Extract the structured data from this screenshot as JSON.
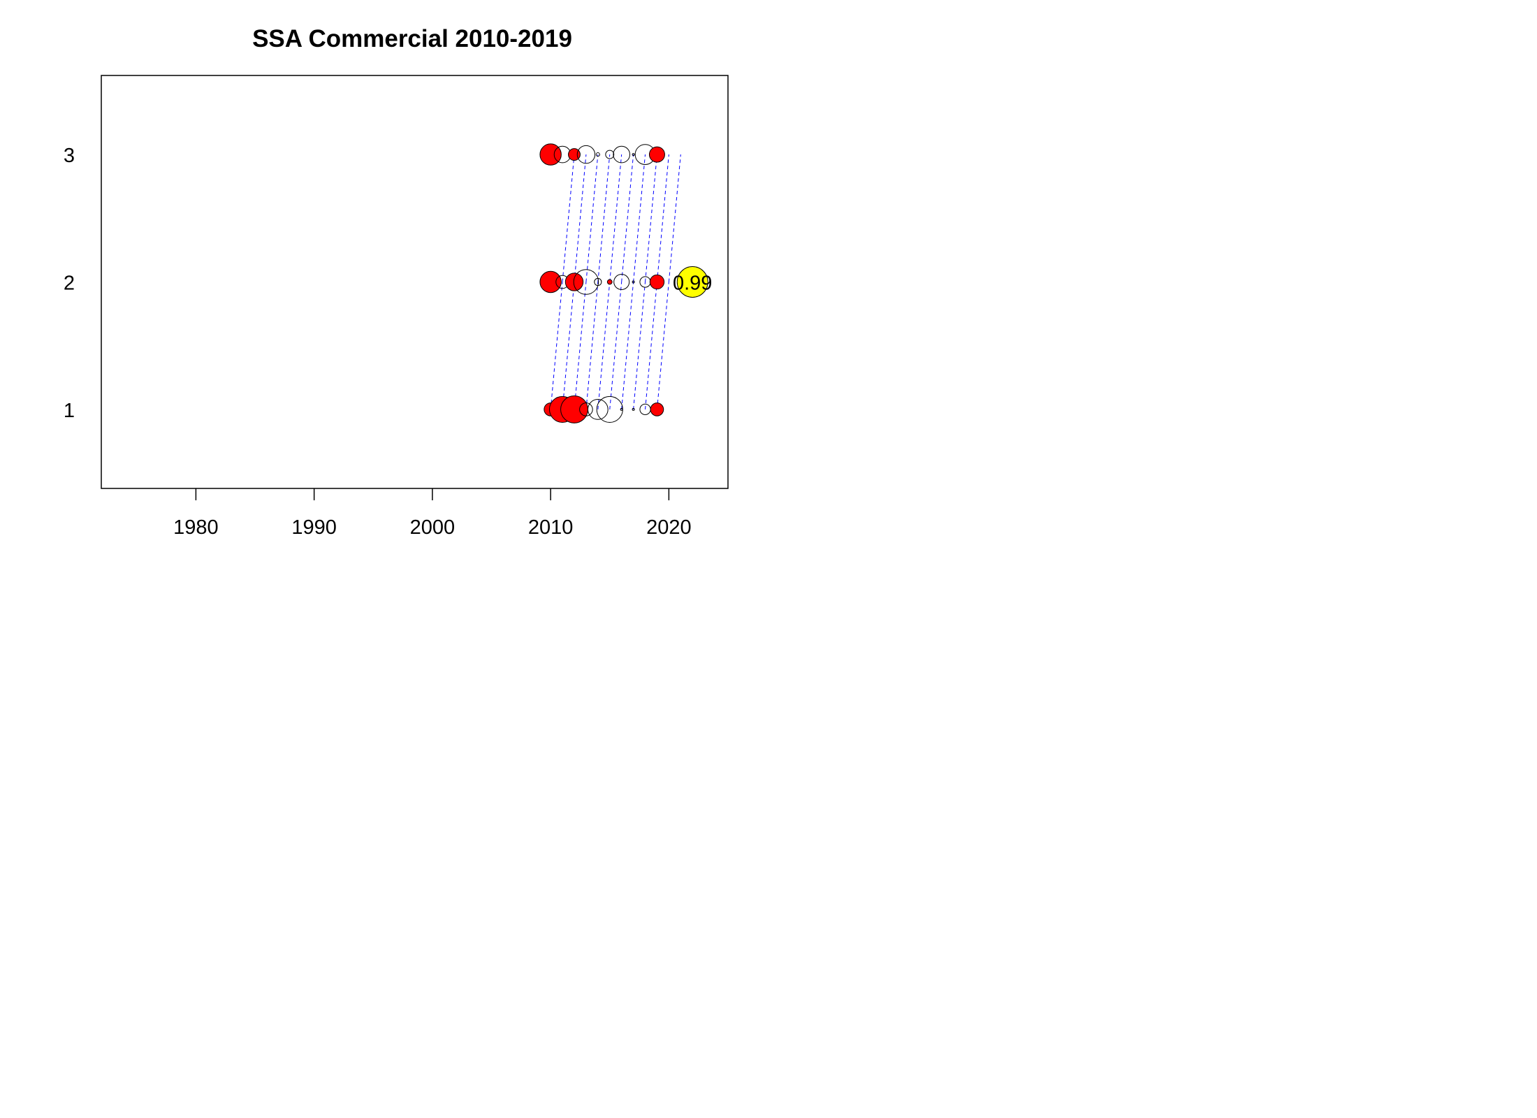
{
  "chart_data": {
    "type": "scatter",
    "title": "SSA Commercial 2010-2019",
    "xlabel": "",
    "ylabel": "",
    "xlim": [
      1972,
      2025
    ],
    "ylim": [
      0.38,
      3.62
    ],
    "x_ticks": [
      1980,
      1990,
      2000,
      2010,
      2020
    ],
    "y_ticks": [
      1,
      2,
      3
    ],
    "grid": false,
    "years": [
      2010,
      2011,
      2012,
      2013,
      2014,
      2015,
      2016,
      2017,
      2018,
      2019
    ],
    "series": [
      {
        "row": 1,
        "points": [
          {
            "x": 2010,
            "r": 0.55,
            "sign": "positive"
          },
          {
            "x": 2011,
            "r": 1.1,
            "sign": "positive"
          },
          {
            "x": 2012,
            "r": 1.15,
            "sign": "positive"
          },
          {
            "x": 2013,
            "r": 0.55,
            "sign": "negative"
          },
          {
            "x": 2014,
            "r": 0.85,
            "sign": "negative"
          },
          {
            "x": 2015,
            "r": 1.1,
            "sign": "negative"
          },
          {
            "x": 2016,
            "r": 0.06,
            "sign": "negative"
          },
          {
            "x": 2017,
            "r": 0.0,
            "sign": "negative"
          },
          {
            "x": 2018,
            "r": 0.45,
            "sign": "negative"
          },
          {
            "x": 2019,
            "r": 0.55,
            "sign": "positive"
          }
        ]
      },
      {
        "row": 2,
        "points": [
          {
            "x": 2010,
            "r": 0.9,
            "sign": "positive"
          },
          {
            "x": 2011,
            "r": 0.55,
            "sign": "negative"
          },
          {
            "x": 2012,
            "r": 0.75,
            "sign": "positive"
          },
          {
            "x": 2013,
            "r": 1.05,
            "sign": "negative"
          },
          {
            "x": 2014,
            "r": 0.3,
            "sign": "negative"
          },
          {
            "x": 2015,
            "r": 0.2,
            "sign": "positive"
          },
          {
            "x": 2016,
            "r": 0.65,
            "sign": "negative"
          },
          {
            "x": 2017,
            "r": 0.03,
            "sign": "negative"
          },
          {
            "x": 2018,
            "r": 0.45,
            "sign": "negative"
          },
          {
            "x": 2019,
            "r": 0.6,
            "sign": "positive"
          }
        ]
      },
      {
        "row": 3,
        "points": [
          {
            "x": 2010,
            "r": 0.9,
            "sign": "positive"
          },
          {
            "x": 2011,
            "r": 0.7,
            "sign": "negative"
          },
          {
            "x": 2012,
            "r": 0.5,
            "sign": "positive"
          },
          {
            "x": 2013,
            "r": 0.75,
            "sign": "negative"
          },
          {
            "x": 2014,
            "r": 0.15,
            "sign": "negative"
          },
          {
            "x": 2015,
            "r": 0.35,
            "sign": "negative"
          },
          {
            "x": 2016,
            "r": 0.7,
            "sign": "negative"
          },
          {
            "x": 2017,
            "r": 0.03,
            "sign": "negative"
          },
          {
            "x": 2018,
            "r": 0.85,
            "sign": "negative"
          },
          {
            "x": 2019,
            "r": 0.65,
            "sign": "positive"
          }
        ]
      }
    ],
    "highlight": {
      "x": 2022,
      "row": 2,
      "r": 1.3,
      "label": "0.99",
      "color": "#ffff00"
    },
    "colors": {
      "positive": "#ff0000",
      "negative": "none",
      "stroke": "#000000",
      "connector": "#0000ff",
      "highlight": "#ffff00"
    }
  }
}
